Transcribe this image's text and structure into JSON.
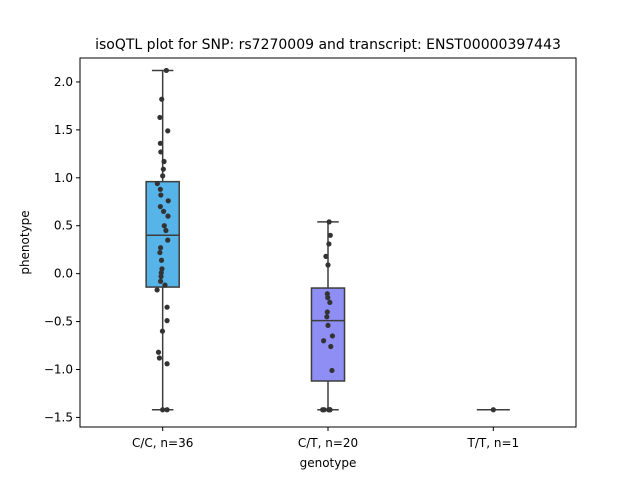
{
  "chart_data": {
    "type": "boxplot",
    "title": "isoQTL plot for SNP: rs7270009 and transcript: ENST00000397443",
    "xlabel": "genotype",
    "ylabel": "phenotype",
    "ylim": [
      -1.6,
      2.25
    ],
    "yticks": [
      -1.5,
      -1.0,
      -0.5,
      0.0,
      0.5,
      1.0,
      1.5,
      2.0
    ],
    "ytick_labels": [
      "−1.5",
      "−1.0",
      "−0.5",
      "0.0",
      "0.5",
      "1.0",
      "1.5",
      "2.0"
    ],
    "categories": [
      "C/C, n=36",
      "C/T, n=20",
      "T/T, n=1"
    ],
    "boxes": [
      {
        "category": "C/C, n=36",
        "q1": -0.14,
        "median": 0.4,
        "q3": 0.96,
        "whisker_low": -1.42,
        "whisker_high": 2.12,
        "color": "#56b4e9"
      },
      {
        "category": "C/T, n=20",
        "q1": -1.12,
        "median": -0.49,
        "q3": -0.15,
        "whisker_low": -1.42,
        "whisker_high": 0.54,
        "color": "#8e8ef5"
      },
      {
        "category": "T/T, n=1",
        "q1": -1.42,
        "median": -1.42,
        "q3": -1.42,
        "whisker_low": -1.42,
        "whisker_high": -1.42,
        "color": "#c7a0f0"
      }
    ],
    "points": [
      {
        "category": "C/C, n=36",
        "values": [
          2.12,
          1.82,
          1.63,
          1.49,
          1.36,
          1.27,
          1.17,
          1.09,
          1.02,
          0.94,
          0.88,
          0.82,
          0.76,
          0.7,
          0.65,
          0.6,
          0.5,
          0.45,
          0.35,
          0.27,
          0.22,
          0.14,
          0.05,
          0.01,
          -0.03,
          -0.08,
          -0.12,
          -0.17,
          -0.35,
          -0.49,
          -0.6,
          -0.82,
          -0.88,
          -0.94,
          -1.42,
          -1.42
        ],
        "jitter": [
          0.16,
          -0.04,
          -0.12,
          0.22,
          -0.1,
          -0.08,
          0.06,
          0.03,
          0.0,
          -0.23,
          -0.1,
          -0.08,
          0.24,
          -0.1,
          0.04,
          0.23,
          0.07,
          0.14,
          0.22,
          -0.09,
          -0.12,
          -0.05,
          -0.03,
          -0.06,
          -0.07,
          -0.09,
          0.1,
          -0.24,
          0.19,
          0.19,
          -0.01,
          -0.18,
          -0.14,
          0.19,
          0.0,
          0.19
        ]
      },
      {
        "category": "C/T, n=20",
        "values": [
          0.54,
          0.4,
          0.31,
          0.18,
          0.09,
          -0.21,
          -0.25,
          -0.3,
          -0.4,
          -0.45,
          -0.54,
          -0.65,
          -0.7,
          -0.76,
          -1.01,
          -1.42,
          -1.42,
          -1.42,
          -1.42,
          -1.42
        ],
        "jitter": [
          0.05,
          0.1,
          0.04,
          -0.09,
          0.0,
          -0.03,
          -0.01,
          0.08,
          -0.03,
          -0.05,
          0.0,
          0.19,
          -0.19,
          0.12,
          0.17,
          -0.23,
          -0.17,
          0.03,
          0.09,
          0.08
        ]
      },
      {
        "category": "T/T, n=1",
        "values": [
          -1.42
        ],
        "jitter": [
          0.0
        ]
      }
    ],
    "point_color": "#333333",
    "grid": false,
    "legend": "none"
  }
}
